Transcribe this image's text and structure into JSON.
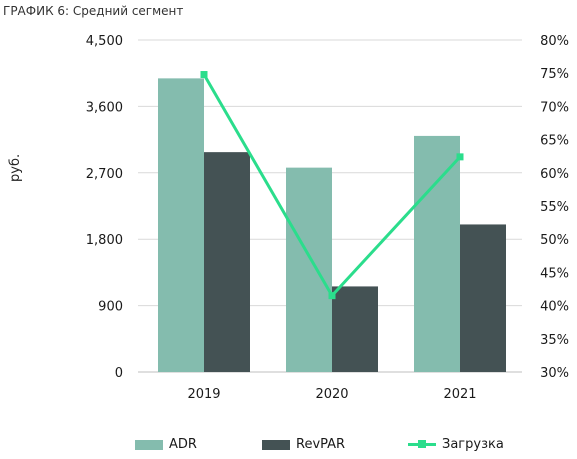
{
  "title": "ГРАФИК 6: Средний сегмент",
  "chart_data": {
    "type": "bar",
    "categories": [
      "2019",
      "2020",
      "2021"
    ],
    "ylabel": "руб.",
    "ylim": [
      0,
      4500
    ],
    "y_ticks": [
      "0",
      "900",
      "1,800",
      "2,700",
      "3,600",
      "4,500"
    ],
    "y2lim": [
      0.3,
      0.8
    ],
    "y2_ticks": [
      "30%",
      "35%",
      "40%",
      "45%",
      "50%",
      "55%",
      "60%",
      "65%",
      "70%",
      "75%",
      "80%"
    ],
    "series": [
      {
        "name": "ADR",
        "type": "bar",
        "axis": "left",
        "color": "#84bcae",
        "values": [
          3980,
          2770,
          3200
        ]
      },
      {
        "name": "RevPAR",
        "type": "bar",
        "axis": "left",
        "color": "#445254",
        "values": [
          2980,
          1160,
          2000
        ]
      },
      {
        "name": "Загрузка",
        "type": "line",
        "axis": "right",
        "color": "#2bdd8c",
        "values": [
          0.748,
          0.415,
          0.624
        ]
      }
    ],
    "grid": true,
    "legend_position": "bottom"
  }
}
